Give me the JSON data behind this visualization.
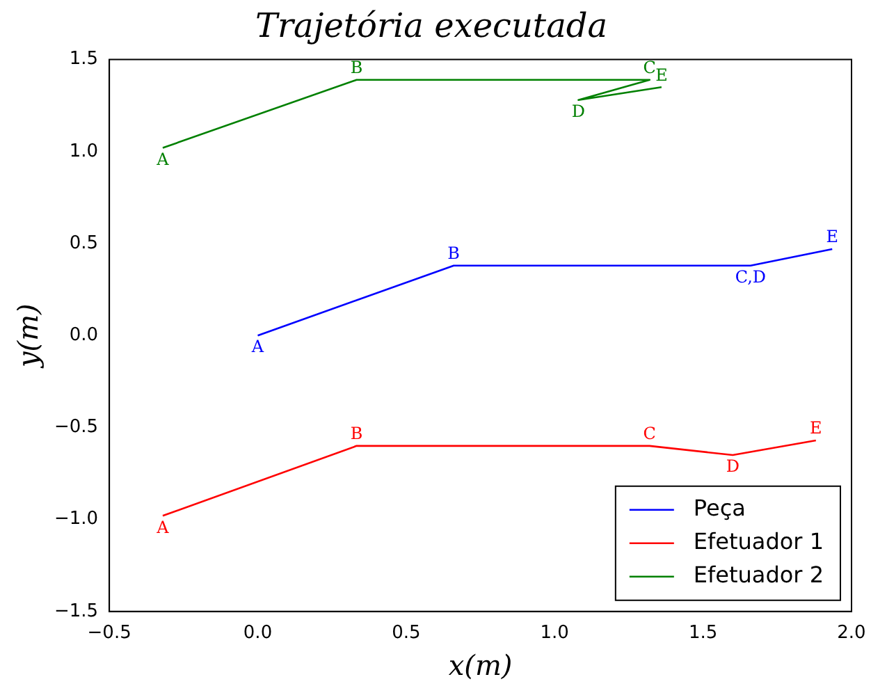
{
  "chart_data": {
    "type": "line",
    "title": "Trajetória executada",
    "xlabel": "x(m)",
    "ylabel": "y(m)",
    "xlim": [
      -0.5,
      2.0
    ],
    "xticks": [
      {
        "value": -0.5,
        "label": "−0.5"
      },
      {
        "value": 0,
        "label": "0.0"
      },
      {
        "value": 0.5,
        "label": "0.5"
      },
      {
        "value": 1,
        "label": "1.0"
      },
      {
        "value": 1.5,
        "label": "1.5"
      },
      {
        "value": 2,
        "label": "2.0"
      }
    ],
    "ylim": [
      -1.5,
      1.5
    ],
    "yticks": [
      {
        "value": -1.5,
        "label": "−1.5"
      },
      {
        "value": -1,
        "label": "−1.0"
      },
      {
        "value": -0.5,
        "label": "−0.5"
      },
      {
        "value": 0,
        "label": "0.0"
      },
      {
        "value": 0.5,
        "label": "0.5"
      },
      {
        "value": 1,
        "label": "1.0"
      },
      {
        "value": 1.5,
        "label": "1.5"
      }
    ],
    "grid": false,
    "legend": "bottom right",
    "marker": "none",
    "line_style": "solid",
    "series": [
      {
        "name": "Peça",
        "color": "#0000ff",
        "x": [
          0.0,
          0.66,
          1.66,
          1.66,
          1.935
        ],
        "values": [
          0.0,
          0.38,
          0.38,
          0.38,
          0.47
        ]
      },
      {
        "name": "Efetuador 1",
        "color": "#ff0000",
        "x": [
          -0.32,
          0.333,
          1.32,
          1.6,
          1.88
        ],
        "values": [
          -0.98,
          -0.6,
          -0.6,
          -0.65,
          -0.57
        ]
      },
      {
        "name": "Efetuador 2",
        "color": "#008000",
        "x": [
          -0.32,
          0.333,
          1.32,
          1.08,
          1.36
        ],
        "values": [
          1.02,
          1.39,
          1.39,
          1.28,
          1.35
        ]
      }
    ],
    "annotations": [
      {
        "text": "A",
        "x": -0.32,
        "y": 1.02
      },
      {
        "text": "B",
        "x": 0.333,
        "y": 1.39
      },
      {
        "text": "C",
        "x": 1.32,
        "y": 1.39
      },
      {
        "text": "D",
        "x": 1.08,
        "y": 1.28
      },
      {
        "text": "E",
        "x": 1.36,
        "y": 1.35
      },
      {
        "text": "A",
        "x": 0.0,
        "y": 0.0
      },
      {
        "text": "B",
        "x": 0.66,
        "y": 0.38
      },
      {
        "text": "C,D",
        "x": 1.66,
        "y": 0.38
      },
      {
        "text": "E",
        "x": 1.935,
        "y": 0.47
      },
      {
        "text": "A",
        "x": -0.32,
        "y": -0.98
      },
      {
        "text": "B",
        "x": 0.333,
        "y": -0.6
      },
      {
        "text": "C",
        "x": 1.32,
        "y": -0.6
      },
      {
        "text": "D",
        "x": 1.6,
        "y": -0.65
      },
      {
        "text": "E",
        "x": 1.88,
        "y": -0.57
      }
    ]
  }
}
